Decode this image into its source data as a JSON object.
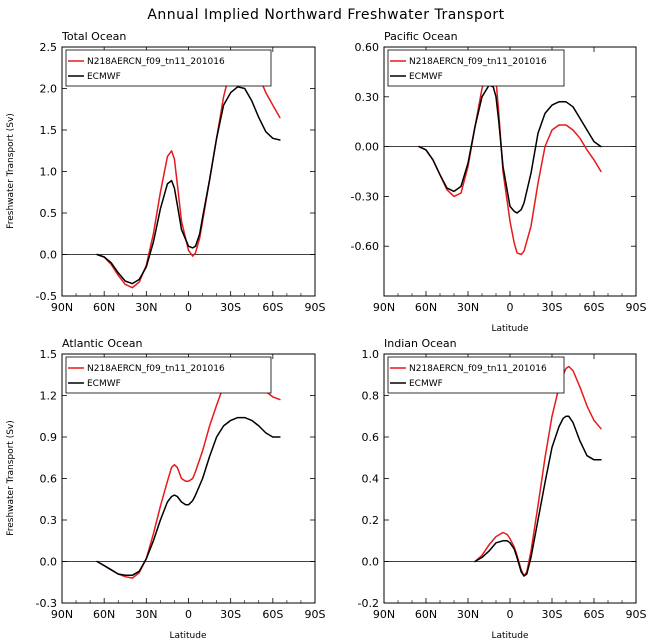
{
  "figure_title": "Annual Implied Northward Freshwater Transport",
  "legend_labels": [
    "N218AERCN_f09_tn11_201016",
    "ECMWF"
  ],
  "colors": {
    "model": "#e8191b",
    "ecmwf": "#000000",
    "zero_line": "#000000"
  },
  "chart_data": [
    {
      "type": "line",
      "title": "Total Ocean",
      "xlabel": "",
      "ylabel": "Freshwater Transport (Sv)",
      "xlim": [
        -90,
        90
      ],
      "ylim": [
        -0.5,
        2.5
      ],
      "x_ticks": [
        -90,
        -60,
        -30,
        0,
        30,
        60,
        90
      ],
      "x_tick_labels": [
        "90N",
        "60N",
        "30N",
        "0",
        "30S",
        "60S",
        "90S"
      ],
      "y_ticks": [
        -0.5,
        0,
        0.5,
        1,
        1.5,
        2,
        2.5
      ],
      "y_tick_labels": [
        "-0.5",
        "0.0",
        "0.5",
        "1.0",
        "1.5",
        "2.0",
        "2.5"
      ],
      "series": [
        {
          "name": "N218AERCN_f09_tn11_201016",
          "color": "#e8191b",
          "x": [
            -65,
            -60,
            -55,
            -50,
            -45,
            -40,
            -35,
            -30,
            -25,
            -20,
            -15,
            -12,
            -10,
            -8,
            -5,
            0,
            3,
            5,
            8,
            10,
            15,
            20,
            25,
            30,
            35,
            40,
            45,
            50,
            55,
            60,
            65
          ],
          "y": [
            0,
            -0.03,
            -0.12,
            -0.25,
            -0.36,
            -0.4,
            -0.33,
            -0.13,
            0.25,
            0.75,
            1.18,
            1.25,
            1.15,
            0.85,
            0.4,
            0.05,
            -0.02,
            0.02,
            0.2,
            0.4,
            0.9,
            1.4,
            1.9,
            2.25,
            2.43,
            2.46,
            2.35,
            2.15,
            1.95,
            1.8,
            1.65
          ]
        },
        {
          "name": "ECMWF",
          "color": "#000000",
          "x": [
            -65,
            -60,
            -55,
            -50,
            -45,
            -40,
            -35,
            -30,
            -25,
            -20,
            -15,
            -12,
            -10,
            -8,
            -5,
            0,
            3,
            5,
            8,
            10,
            15,
            20,
            25,
            30,
            35,
            40,
            45,
            50,
            55,
            60,
            65
          ],
          "y": [
            0,
            -0.03,
            -0.1,
            -0.22,
            -0.32,
            -0.35,
            -0.3,
            -0.15,
            0.15,
            0.55,
            0.85,
            0.89,
            0.8,
            0.6,
            0.3,
            0.1,
            0.08,
            0.1,
            0.25,
            0.45,
            0.9,
            1.4,
            1.8,
            1.95,
            2.02,
            2.0,
            1.85,
            1.65,
            1.48,
            1.4,
            1.38
          ]
        }
      ]
    },
    {
      "type": "line",
      "title": "Pacific Ocean",
      "xlabel": "Latitude",
      "ylabel": "",
      "xlim": [
        -90,
        90
      ],
      "ylim": [
        -0.9,
        0.6
      ],
      "x_ticks": [
        -90,
        -60,
        -30,
        0,
        30,
        60,
        90
      ],
      "x_tick_labels": [
        "90N",
        "60N",
        "30N",
        "0",
        "30S",
        "60S",
        "90S"
      ],
      "y_ticks": [
        -0.6,
        -0.3,
        0,
        0.3,
        0.6
      ],
      "y_tick_labels": [
        "-0.60",
        "-0.30",
        "0.00",
        "0.30",
        "0.60"
      ],
      "series": [
        {
          "name": "N218AERCN_f09_tn11_201016",
          "color": "#e8191b",
          "x": [
            -65,
            -60,
            -55,
            -50,
            -45,
            -40,
            -35,
            -30,
            -25,
            -20,
            -15,
            -12,
            -10,
            -8,
            -5,
            0,
            3,
            5,
            8,
            10,
            15,
            20,
            25,
            30,
            35,
            40,
            45,
            50,
            55,
            60,
            65
          ],
          "y": [
            0,
            -0.02,
            -0.08,
            -0.17,
            -0.26,
            -0.3,
            -0.28,
            -0.12,
            0.12,
            0.35,
            0.48,
            0.48,
            0.4,
            0.2,
            -0.15,
            -0.45,
            -0.58,
            -0.64,
            -0.65,
            -0.63,
            -0.48,
            -0.22,
            0.0,
            0.1,
            0.13,
            0.13,
            0.1,
            0.05,
            -0.02,
            -0.08,
            -0.15
          ]
        },
        {
          "name": "ECMWF",
          "color": "#000000",
          "x": [
            -65,
            -60,
            -55,
            -50,
            -45,
            -40,
            -35,
            -30,
            -25,
            -20,
            -15,
            -12,
            -10,
            -8,
            -5,
            0,
            3,
            5,
            8,
            10,
            15,
            20,
            25,
            30,
            35,
            40,
            45,
            50,
            55,
            60,
            65
          ],
          "y": [
            0,
            -0.02,
            -0.08,
            -0.17,
            -0.25,
            -0.27,
            -0.24,
            -0.1,
            0.12,
            0.3,
            0.37,
            0.36,
            0.3,
            0.15,
            -0.12,
            -0.36,
            -0.39,
            -0.4,
            -0.38,
            -0.34,
            -0.16,
            0.08,
            0.2,
            0.25,
            0.27,
            0.27,
            0.24,
            0.17,
            0.1,
            0.03,
            0.0
          ]
        }
      ]
    },
    {
      "type": "line",
      "title": "Atlantic Ocean",
      "xlabel": "Latitude",
      "ylabel": "Freshwater Transport (Sv)",
      "xlim": [
        -90,
        90
      ],
      "ylim": [
        -0.3,
        1.5
      ],
      "x_ticks": [
        -90,
        -60,
        -30,
        0,
        30,
        60,
        90
      ],
      "x_tick_labels": [
        "90N",
        "60N",
        "30N",
        "0",
        "30S",
        "60S",
        "90S"
      ],
      "y_ticks": [
        -0.3,
        0,
        0.3,
        0.6,
        0.9,
        1.2,
        1.5
      ],
      "y_tick_labels": [
        "-0.3",
        "0.0",
        "0.3",
        "0.6",
        "0.9",
        "1.2",
        "1.5"
      ],
      "series": [
        {
          "name": "N218AERCN_f09_tn11_201016",
          "color": "#e8191b",
          "x": [
            -65,
            -60,
            -55,
            -50,
            -45,
            -40,
            -35,
            -30,
            -25,
            -20,
            -15,
            -12,
            -10,
            -8,
            -5,
            -2,
            0,
            3,
            5,
            10,
            15,
            20,
            25,
            30,
            35,
            40,
            45,
            50,
            55,
            60,
            65
          ],
          "y": [
            0,
            -0.03,
            -0.06,
            -0.09,
            -0.11,
            -0.12,
            -0.08,
            0.02,
            0.2,
            0.4,
            0.58,
            0.68,
            0.7,
            0.68,
            0.6,
            0.58,
            0.58,
            0.6,
            0.65,
            0.8,
            0.98,
            1.13,
            1.27,
            1.36,
            1.4,
            1.39,
            1.35,
            1.29,
            1.23,
            1.19,
            1.17
          ]
        },
        {
          "name": "ECMWF",
          "color": "#000000",
          "x": [
            -65,
            -60,
            -55,
            -50,
            -45,
            -40,
            -35,
            -30,
            -25,
            -20,
            -15,
            -12,
            -10,
            -8,
            -5,
            -2,
            0,
            3,
            5,
            10,
            15,
            20,
            25,
            30,
            35,
            40,
            45,
            50,
            55,
            60,
            65
          ],
          "y": [
            0,
            -0.03,
            -0.06,
            -0.09,
            -0.1,
            -0.1,
            -0.07,
            0.02,
            0.15,
            0.3,
            0.43,
            0.47,
            0.48,
            0.47,
            0.43,
            0.41,
            0.41,
            0.44,
            0.48,
            0.6,
            0.76,
            0.9,
            0.98,
            1.02,
            1.04,
            1.04,
            1.02,
            0.98,
            0.93,
            0.9,
            0.9
          ]
        }
      ]
    },
    {
      "type": "line",
      "title": "Indian Ocean",
      "xlabel": "Latitude",
      "ylabel": "",
      "xlim": [
        -90,
        90
      ],
      "ylim": [
        -0.2,
        1.0
      ],
      "x_ticks": [
        -90,
        -60,
        -30,
        0,
        30,
        60,
        90
      ],
      "x_tick_labels": [
        "90N",
        "60N",
        "30N",
        "0",
        "30S",
        "60S",
        "90S"
      ],
      "y_ticks": [
        -0.2,
        0,
        0.2,
        0.4,
        0.6,
        0.8,
        1.0
      ],
      "y_tick_labels": [
        "-0.2",
        "0.0",
        "0.2",
        "0.4",
        "0.6",
        "0.8",
        "1.0"
      ],
      "series": [
        {
          "name": "N218AERCN_f09_tn11_201016",
          "color": "#e8191b",
          "x": [
            -25,
            -20,
            -15,
            -10,
            -5,
            -2,
            0,
            3,
            5,
            8,
            10,
            12,
            15,
            20,
            25,
            30,
            35,
            38,
            40,
            42,
            45,
            50,
            55,
            60,
            65
          ],
          "y": [
            0,
            0.03,
            0.08,
            0.12,
            0.14,
            0.13,
            0.11,
            0.07,
            0.03,
            -0.04,
            -0.07,
            -0.05,
            0.05,
            0.27,
            0.5,
            0.7,
            0.84,
            0.9,
            0.93,
            0.94,
            0.92,
            0.84,
            0.75,
            0.68,
            0.64
          ]
        },
        {
          "name": "ECMWF",
          "color": "#000000",
          "x": [
            -25,
            -20,
            -15,
            -10,
            -5,
            -2,
            0,
            3,
            5,
            8,
            10,
            12,
            15,
            20,
            25,
            30,
            35,
            38,
            40,
            42,
            45,
            50,
            55,
            60,
            65
          ],
          "y": [
            0,
            0.02,
            0.05,
            0.09,
            0.1,
            0.1,
            0.09,
            0.06,
            0.02,
            -0.05,
            -0.07,
            -0.06,
            0.02,
            0.2,
            0.38,
            0.55,
            0.65,
            0.69,
            0.7,
            0.7,
            0.67,
            0.58,
            0.51,
            0.49,
            0.49
          ]
        }
      ]
    }
  ]
}
